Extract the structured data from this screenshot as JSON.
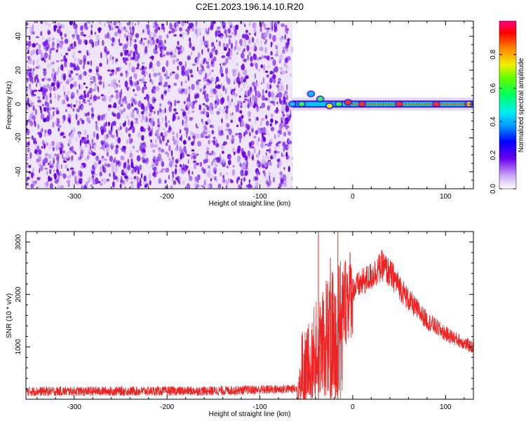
{
  "figure": {
    "title": "C2E1.2023.196.14.10.R20"
  },
  "chart_data": [
    {
      "type": "heatmap",
      "xlabel": "Height of straight line (km)",
      "ylabel": "Frequency (Hz)",
      "xlim": [
        -352,
        130
      ],
      "ylim": [
        -50,
        49
      ],
      "xticks": [
        -300,
        -200,
        -100,
        0,
        100
      ],
      "yticks": [
        -40,
        -20,
        0,
        20,
        40
      ],
      "noise_region_x": [
        -352,
        -65
      ],
      "signal_region_x": [
        -65,
        130
      ],
      "signal_center_hz": 0,
      "signal_points": [
        {
          "x": -65,
          "y": 0,
          "v": 0.45
        },
        {
          "x": -55,
          "y": 0,
          "v": 0.5
        },
        {
          "x": -45,
          "y": 6,
          "v": 0.35
        },
        {
          "x": -35,
          "y": 3,
          "v": 0.5
        },
        {
          "x": -25,
          "y": -1,
          "v": 0.8
        },
        {
          "x": -15,
          "y": 0,
          "v": 0.55
        },
        {
          "x": -5,
          "y": 1,
          "v": 0.9
        },
        {
          "x": 10,
          "y": 0,
          "v": 0.85
        },
        {
          "x": 50,
          "y": 0,
          "v": 0.9
        },
        {
          "x": 90,
          "y": 0,
          "v": 0.85
        },
        {
          "x": 125,
          "y": 0,
          "v": 0.8
        }
      ],
      "colorbar": {
        "label": "Normalized spectral amplitude",
        "range": [
          0,
          1
        ],
        "ticks": [
          0.0,
          0.2,
          0.4,
          0.6,
          0.8
        ]
      },
      "grid": false
    },
    {
      "type": "line",
      "xlabel": "Height of straight line (km)",
      "ylabel": "SNR (10 * v/v)",
      "xlim": [
        -352,
        130
      ],
      "ylim": [
        0,
        3200
      ],
      "xticks": [
        -300,
        -200,
        -100,
        0,
        100
      ],
      "yticks": [
        1000,
        2000,
        3000
      ],
      "color": "#ee2222",
      "series_envelope": [
        {
          "x": -352,
          "y": 150
        },
        {
          "x": -250,
          "y": 155
        },
        {
          "x": -150,
          "y": 160
        },
        {
          "x": -60,
          "y": 200
        },
        {
          "x": -45,
          "y": 700
        },
        {
          "x": -35,
          "y": 1200
        },
        {
          "x": -25,
          "y": 1500
        },
        {
          "x": -15,
          "y": 1700
        },
        {
          "x": 0,
          "y": 2100
        },
        {
          "x": 20,
          "y": 2350
        },
        {
          "x": 32,
          "y": 2550
        },
        {
          "x": 45,
          "y": 2300
        },
        {
          "x": 60,
          "y": 1900
        },
        {
          "x": 80,
          "y": 1500
        },
        {
          "x": 100,
          "y": 1250
        },
        {
          "x": 130,
          "y": 980
        }
      ],
      "spikes": [
        {
          "x": -37,
          "y": 3200
        },
        {
          "x": -24,
          "y": 2700
        },
        {
          "x": -16,
          "y": 3200
        }
      ],
      "grid": false
    }
  ]
}
